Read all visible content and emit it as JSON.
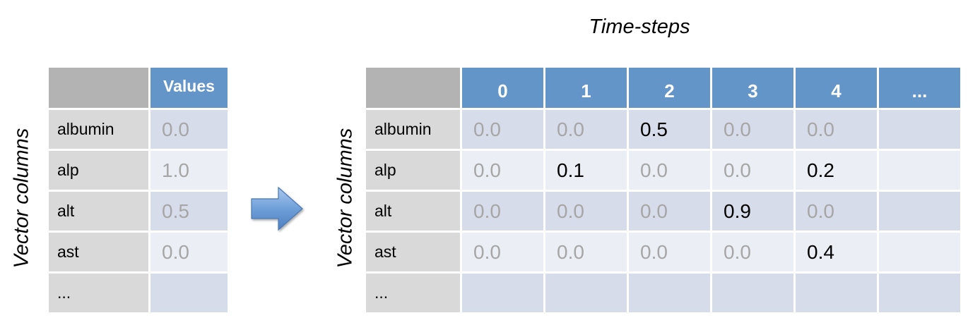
{
  "y_axis_label": "Vector columns",
  "time_title": "Time-steps",
  "left_table": {
    "header": "Values",
    "rows": [
      {
        "label": "albumin",
        "value": "0.0"
      },
      {
        "label": "alp",
        "value": "1.0"
      },
      {
        "label": "alt",
        "value": "0.5"
      },
      {
        "label": "ast",
        "value": "0.0"
      },
      {
        "label": "...",
        "value": ""
      }
    ]
  },
  "right_table": {
    "headers": [
      "0",
      "1",
      "2",
      "3",
      "4",
      "..."
    ],
    "rows": [
      {
        "label": "albumin",
        "values": [
          "0.0",
          "0.0",
          "0.5",
          "0.0",
          "0.0",
          ""
        ],
        "highlight": [
          false,
          false,
          true,
          false,
          false,
          false
        ]
      },
      {
        "label": "alp",
        "values": [
          "0.0",
          "0.1",
          "0.0",
          "0.0",
          "0.2",
          ""
        ],
        "highlight": [
          false,
          true,
          false,
          false,
          true,
          false
        ]
      },
      {
        "label": "alt",
        "values": [
          "0.0",
          "0.0",
          "0.0",
          "0.9",
          "0.0",
          ""
        ],
        "highlight": [
          false,
          false,
          false,
          true,
          false,
          false
        ]
      },
      {
        "label": "ast",
        "values": [
          "0.0",
          "0.0",
          "0.0",
          "0.0",
          "0.4",
          ""
        ],
        "highlight": [
          false,
          false,
          false,
          false,
          true,
          false
        ]
      },
      {
        "label": "...",
        "values": [
          "",
          "",
          "",
          "",
          "",
          ""
        ],
        "highlight": [
          false,
          false,
          false,
          false,
          false,
          false
        ]
      }
    ]
  },
  "colors": {
    "header_blue": "#6495c9",
    "corner_gray": "#b3b3b3",
    "label_gray": "#d9d9d9",
    "cell_dark": "#d6dcea",
    "cell_light": "#ebeef5",
    "muted_value": "#a6a6a6",
    "highlight_value": "#000000",
    "arrow": "#6f9fd8"
  },
  "icons": {
    "transform_arrow": "right-arrow-icon"
  }
}
